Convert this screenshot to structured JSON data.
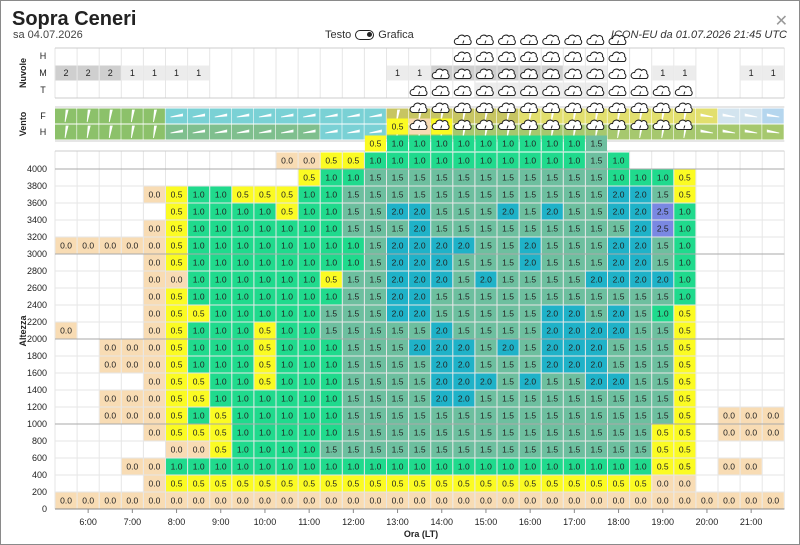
{
  "header": {
    "title": "Sopra Ceneri",
    "date": "sa 04.07.2026",
    "toggle_left": "Testo",
    "toggle_right": "Grafica",
    "model_run": "ICON-EU da 01.07.2026 21:45 UTC",
    "close_icon": "close-icon"
  },
  "clouds_panel": {
    "label": "Nuvole",
    "levels": [
      "H",
      "M",
      "T"
    ]
  },
  "wind_panel": {
    "label": "Vento",
    "levels": [
      "F",
      "H"
    ]
  },
  "chart_data": {
    "type": "heatmap",
    "xlabel": "Ora (LT)",
    "ylabel": "Altezza",
    "x_ticks": [
      "6:00",
      "7:00",
      "8:00",
      "9:00",
      "10:00",
      "11:00",
      "12:00",
      "13:00",
      "14:00",
      "15:00",
      "16:00",
      "17:00",
      "18:00",
      "19:00",
      "20:00",
      "21:00"
    ],
    "y_ticks": [
      0,
      200,
      400,
      600,
      800,
      1000,
      1200,
      1400,
      1600,
      1800,
      2000,
      2200,
      2400,
      2600,
      2800,
      3000,
      3200,
      3400,
      3600,
      3800,
      4000
    ],
    "ylim": [
      0,
      4100
    ],
    "time_steps_per_hour": 2,
    "first_step": "5:30",
    "level_step_m": 200,
    "color_scale": {
      "0.0": "#f8dcb4",
      "0.5": "#fbfb23",
      "1.0": "#20da8d",
      "1.5": "#6dbf9f",
      "2.0": "#1fb2c8",
      "2.5": "#7a88e2"
    },
    "cloud_cells_desc": "shower cloud icon cells per column (bottom level index, count)",
    "cloud_icons": [
      [
        14,
        0
      ],
      [
        14,
        0
      ],
      [
        14,
        0
      ],
      [
        14,
        0
      ],
      [
        14,
        0
      ],
      [
        14,
        0
      ],
      [
        14,
        0
      ],
      [
        14,
        0
      ],
      [
        14,
        0
      ],
      [
        14,
        0
      ],
      [
        14,
        0
      ],
      [
        14,
        0
      ],
      [
        14,
        0
      ],
      [
        14,
        0
      ],
      [
        14,
        0
      ],
      [
        14,
        0
      ],
      [
        17,
        3
      ],
      [
        17,
        4
      ],
      [
        17,
        6
      ],
      [
        17,
        6
      ],
      [
        17,
        6
      ],
      [
        17,
        6
      ],
      [
        17,
        6
      ],
      [
        17,
        6
      ],
      [
        17,
        6
      ],
      [
        17,
        6
      ],
      [
        17,
        4
      ],
      [
        17,
        3
      ],
      [
        17,
        3
      ],
      [
        17,
        0
      ],
      [
        17,
        0
      ],
      [
        17,
        0
      ],
      [
        17,
        0
      ]
    ],
    "updraft_grid": [
      [
        "0.0",
        "0.0",
        "0.0",
        "0.0",
        "0.0",
        "0.0",
        "0.0",
        "0.0",
        "0.0",
        "0.0",
        "0.0",
        "0.0",
        "0.0",
        "0.0",
        "0.0",
        "0.0",
        "0.0",
        "0.0",
        "0.0",
        "0.0",
        "0.0",
        "0.0",
        "0.0",
        "0.0",
        "0.0",
        "0.0",
        "0.0",
        "0.0",
        "0.0",
        "0.0",
        "0.0",
        "0.0",
        "0.0"
      ],
      [
        "",
        "",
        "",
        "",
        "0.0",
        "0.5",
        "0.5",
        "0.5",
        "0.5",
        "0.5",
        "0.5",
        "0.5",
        "0.5",
        "0.5",
        "0.5",
        "0.5",
        "0.5",
        "0.5",
        "0.5",
        "0.5",
        "0.5",
        "0.5",
        "0.5",
        "0.5",
        "0.5",
        "0.5",
        "0.5",
        "0.0",
        "0.0",
        "",
        "",
        "",
        ""
      ],
      [
        "",
        "",
        "",
        "0.0",
        "0.0",
        "1.0",
        "1.0",
        "1.0",
        "1.0",
        "1.0",
        "1.0",
        "1.0",
        "1.0",
        "1.0",
        "1.0",
        "1.0",
        "1.0",
        "1.0",
        "1.0",
        "1.0",
        "1.0",
        "1.0",
        "1.0",
        "1.0",
        "1.0",
        "1.0",
        "1.0",
        "0.5",
        "0.5",
        "",
        "0.0",
        "0.0",
        ""
      ],
      [
        "",
        "",
        "",
        "",
        "",
        "0.0",
        "0.0",
        "0.5",
        "1.0",
        "1.0",
        "1.0",
        "1.0",
        "1.5",
        "1.5",
        "1.5",
        "1.5",
        "1.5",
        "1.5",
        "1.5",
        "1.5",
        "1.5",
        "1.5",
        "1.5",
        "1.5",
        "1.5",
        "1.5",
        "1.5",
        "0.5",
        "0.5",
        "",
        "",
        "",
        ""
      ],
      [
        "",
        "",
        "",
        "",
        "0.0",
        "0.5",
        "0.5",
        "0.5",
        "1.0",
        "1.0",
        "1.0",
        "1.0",
        "1.0",
        "1.5",
        "1.5",
        "1.5",
        "1.5",
        "1.5",
        "1.5",
        "1.5",
        "1.5",
        "1.5",
        "1.5",
        "1.5",
        "1.5",
        "1.5",
        "1.5",
        "0.5",
        "0.5",
        "",
        "0.0",
        "0.0",
        "0.0"
      ],
      [
        "",
        "",
        "0.0",
        "0.0",
        "0.0",
        "0.5",
        "1.0",
        "0.5",
        "1.0",
        "1.0",
        "1.0",
        "1.0",
        "1.0",
        "1.5",
        "1.5",
        "1.5",
        "1.5",
        "1.5",
        "1.5",
        "1.5",
        "1.5",
        "1.5",
        "1.5",
        "1.5",
        "1.5",
        "1.5",
        "1.5",
        "1.5",
        "0.5",
        "",
        "0.0",
        "0.0",
        "0.0"
      ],
      [
        "",
        "",
        "0.0",
        "0.0",
        "0.0",
        "0.5",
        "0.5",
        "1.0",
        "1.0",
        "1.0",
        "1.0",
        "1.0",
        "1.0",
        "1.5",
        "1.5",
        "1.5",
        "1.5",
        "2.0",
        "2.0",
        "1.5",
        "1.5",
        "1.5",
        "1.5",
        "1.5",
        "1.5",
        "1.5",
        "1.5",
        "1.5",
        "0.5",
        "",
        "",
        "",
        ""
      ],
      [
        "",
        "",
        "",
        "",
        "0.0",
        "0.5",
        "0.5",
        "1.0",
        "1.0",
        "0.5",
        "1.0",
        "1.0",
        "1.0",
        "1.5",
        "1.5",
        "1.5",
        "1.5",
        "2.0",
        "2.0",
        "2.0",
        "1.5",
        "2.0",
        "1.5",
        "1.5",
        "2.0",
        "2.0",
        "1.5",
        "1.5",
        "0.5",
        "",
        "",
        "",
        ""
      ],
      [
        "",
        "",
        "0.0",
        "0.0",
        "0.0",
        "0.5",
        "1.0",
        "1.0",
        "1.0",
        "0.5",
        "1.0",
        "1.0",
        "1.0",
        "1.5",
        "1.5",
        "1.5",
        "1.5",
        "2.0",
        "2.0",
        "1.5",
        "1.5",
        "1.5",
        "2.0",
        "2.0",
        "2.0",
        "1.5",
        "1.5",
        "1.5",
        "0.5",
        "",
        "",
        "",
        ""
      ],
      [
        "",
        "",
        "0.0",
        "0.0",
        "0.0",
        "0.5",
        "1.0",
        "1.0",
        "1.0",
        "0.5",
        "1.0",
        "1.0",
        "1.0",
        "1.5",
        "1.5",
        "1.5",
        "2.0",
        "2.0",
        "2.0",
        "1.5",
        "2.0",
        "1.5",
        "2.0",
        "2.0",
        "2.0",
        "1.5",
        "1.5",
        "1.5",
        "0.5",
        "",
        "",
        "",
        ""
      ],
      [
        "0.0",
        "",
        "",
        "",
        "0.0",
        "0.5",
        "1.0",
        "1.0",
        "1.0",
        "0.5",
        "1.0",
        "1.0",
        "1.5",
        "1.5",
        "1.5",
        "1.5",
        "1.5",
        "2.0",
        "1.5",
        "1.5",
        "1.5",
        "1.5",
        "2.0",
        "2.0",
        "2.0",
        "2.0",
        "1.5",
        "1.5",
        "0.5",
        "",
        "",
        "",
        ""
      ],
      [
        "",
        "",
        "",
        "",
        "0.0",
        "0.5",
        "0.5",
        "1.0",
        "1.0",
        "1.0",
        "1.0",
        "1.0",
        "1.5",
        "1.5",
        "1.5",
        "2.0",
        "2.0",
        "1.5",
        "1.5",
        "1.5",
        "1.5",
        "1.5",
        "2.0",
        "2.0",
        "1.5",
        "2.0",
        "1.5",
        "1.0",
        "0.5",
        "",
        "",
        "",
        ""
      ],
      [
        "",
        "",
        "",
        "",
        "0.0",
        "0.5",
        "1.0",
        "1.0",
        "1.0",
        "1.0",
        "1.0",
        "1.0",
        "1.0",
        "1.5",
        "1.5",
        "2.0",
        "2.0",
        "1.5",
        "1.5",
        "1.5",
        "1.5",
        "1.5",
        "1.5",
        "1.5",
        "1.5",
        "1.5",
        "1.5",
        "1.5",
        "1.0",
        "",
        "",
        "",
        ""
      ],
      [
        "",
        "",
        "",
        "",
        "0.0",
        "0.0",
        "1.0",
        "1.0",
        "1.0",
        "1.0",
        "1.0",
        "1.0",
        "0.5",
        "1.5",
        "1.5",
        "2.0",
        "2.0",
        "2.0",
        "1.5",
        "2.0",
        "1.5",
        "1.5",
        "1.5",
        "1.5",
        "2.0",
        "2.0",
        "2.0",
        "2.0",
        "1.0",
        "",
        "",
        "",
        ""
      ],
      [
        "",
        "",
        "",
        "",
        "0.0",
        "0.5",
        "1.0",
        "1.0",
        "1.0",
        "1.0",
        "1.0",
        "1.0",
        "1.0",
        "1.0",
        "1.5",
        "2.0",
        "2.0",
        "2.0",
        "1.5",
        "1.5",
        "1.5",
        "2.0",
        "1.5",
        "1.5",
        "1.5",
        "2.0",
        "2.0",
        "1.5",
        "1.0",
        "",
        "",
        "",
        ""
      ],
      [
        "0.0",
        "0.0",
        "0.0",
        "0.0",
        "0.0",
        "0.5",
        "1.0",
        "1.0",
        "1.0",
        "1.0",
        "1.0",
        "1.0",
        "1.0",
        "1.0",
        "1.5",
        "2.0",
        "2.0",
        "2.0",
        "2.0",
        "1.5",
        "1.5",
        "2.0",
        "1.5",
        "1.5",
        "1.5",
        "2.0",
        "2.0",
        "1.5",
        "1.0",
        "",
        "",
        "",
        ""
      ],
      [
        "",
        "",
        "",
        "",
        "0.0",
        "0.5",
        "1.0",
        "1.0",
        "1.0",
        "1.0",
        "1.0",
        "1.0",
        "1.0",
        "1.5",
        "1.5",
        "1.5",
        "2.0",
        "1.5",
        "1.5",
        "1.5",
        "1.5",
        "1.5",
        "1.5",
        "1.5",
        "1.5",
        "1.5",
        "2.0",
        "2.5",
        "1.0",
        "",
        "",
        "",
        ""
      ],
      [
        "",
        "",
        "",
        "",
        "",
        "0.5",
        "1.0",
        "1.0",
        "1.0",
        "1.0",
        "0.5",
        "1.0",
        "1.0",
        "1.5",
        "1.5",
        "2.0",
        "2.0",
        "1.5",
        "1.5",
        "1.5",
        "2.0",
        "1.5",
        "2.0",
        "1.5",
        "1.5",
        "2.0",
        "2.0",
        "2.5",
        "1.0",
        "",
        "",
        "",
        ""
      ],
      [
        "",
        "",
        "",
        "",
        "0.0",
        "0.5",
        "1.0",
        "1.0",
        "0.5",
        "0.5",
        "0.5",
        "1.0",
        "1.0",
        "1.5",
        "1.5",
        "1.5",
        "1.5",
        "1.5",
        "1.5",
        "1.5",
        "1.5",
        "1.5",
        "1.5",
        "1.5",
        "1.5",
        "2.0",
        "2.0",
        "1.5",
        "0.5",
        "",
        "",
        "",
        ""
      ],
      [
        "",
        "",
        "",
        "",
        "",
        "",
        "",
        "",
        "",
        "",
        "",
        "0.5",
        "1.0",
        "1.0",
        "1.5",
        "1.5",
        "1.5",
        "1.5",
        "1.5",
        "1.5",
        "1.5",
        "1.5",
        "1.5",
        "1.5",
        "1.5",
        "1.0",
        "1.0",
        "1.0",
        "0.5",
        "",
        "",
        "",
        ""
      ],
      [
        "",
        "",
        "",
        "",
        "",
        "",
        "",
        "",
        "",
        "",
        "0.0",
        "0.0",
        "0.5",
        "0.5",
        "1.0",
        "1.0",
        "1.0",
        "1.0",
        "1.0",
        "1.0",
        "1.0",
        "1.0",
        "1.0",
        "1.0",
        "1.5",
        "1.0",
        "",
        "",
        "",
        "",
        "",
        "",
        ""
      ],
      [
        "",
        "",
        "",
        "",
        "",
        "",
        "",
        "",
        "",
        "",
        "",
        "",
        "",
        "",
        "0.5",
        "1.0",
        "1.0",
        "1.0",
        "1.0",
        "1.0",
        "1.0",
        "1.0",
        "1.0",
        "1.0",
        "1.5",
        "",
        "",
        "",
        "",
        "",
        "",
        "",
        ""
      ],
      [
        "",
        "",
        "",
        "",
        "",
        "",
        "",
        "",
        "",
        "",
        "",
        "",
        "",
        "",
        "",
        "0.5",
        "0.0",
        "0.5",
        "",
        "",
        "",
        "",
        "",
        "",
        "",
        "",
        "",
        "",
        "",
        "",
        "",
        "",
        ""
      ]
    ]
  },
  "clouds_rows": {
    "H": [
      "",
      "",
      "",
      "",
      "",
      "",
      "",
      "",
      "",
      "",
      "",
      "",
      "",
      "",
      "",
      "",
      "",
      "",
      "",
      "",
      "",
      "",
      "",
      "",
      "",
      "",
      "",
      "",
      "",
      "",
      "",
      "",
      ""
    ],
    "M": [
      "2",
      "2",
      "2",
      "1",
      "1",
      "1",
      "1",
      "",
      "",
      "",
      "",
      "",
      "",
      "",
      "",
      "1",
      "1",
      "2",
      "2",
      "2",
      "2",
      "2",
      "2",
      "1",
      "1",
      "",
      "",
      "1",
      "1",
      "",
      "",
      "1",
      "1"
    ],
    "T": [
      "",
      "",
      "",
      "",
      "",
      "",
      "",
      "",
      "",
      "",
      "",
      "",
      "",
      "",
      "",
      "",
      "",
      "",
      "",
      "1",
      "1",
      "1",
      "1",
      "1",
      "1",
      "",
      "",
      "",
      "",
      "",
      "",
      "",
      ""
    ]
  },
  "wind_rows": {
    "F": [
      "#8cc16a",
      "#8cc16a",
      "#8cc16a",
      "#8cc16a",
      "#8cc16a",
      "#7ad1d5",
      "#7ad1d5",
      "#7ad1d5",
      "#7ad1d5",
      "#7ad1d5",
      "#7ad1d5",
      "#7ad1d5",
      "#7ad1d5",
      "#7ad1d5",
      "#7ad1d5",
      "#c7c562",
      "#c7c562",
      "#c7c562",
      "#c7c562",
      "#c7c562",
      "#c7c562",
      "#e2df6e",
      "#e2df6e",
      "#e2df6e",
      "#e2df6e",
      "#e2df6e",
      "#e2df6e",
      "#e2df6e",
      "#e2df6e",
      "#e2df6e",
      "#d3e4ef",
      "#d3e4ef",
      "#b5d6ee"
    ],
    "H": [
      "#8cc16a",
      "#8cc16a",
      "#8cc16a",
      "#8cc16a",
      "#8cc16a",
      "#7fbf8e",
      "#7fbf8e",
      "#7fbf8e",
      "#7fbf8e",
      "#7fbf8e",
      "#7fbf8e",
      "#7fbf8e",
      "#7ad1d5",
      "#7ad1d5",
      "#7ad1d5",
      "#a6c86e",
      "#a6c86e",
      "#a6c86e",
      "#a6c86e",
      "#a6c86e",
      "#a6c86e",
      "#a6c86e",
      "#a6c86e",
      "#a6c86e",
      "#a6c86e",
      "#a6c86e",
      "#a6c86e",
      "#a6c86e",
      "#a6c86e",
      "#a6c86e",
      "#a6c86e",
      "#a6c86e",
      "#a6c86e"
    ]
  }
}
